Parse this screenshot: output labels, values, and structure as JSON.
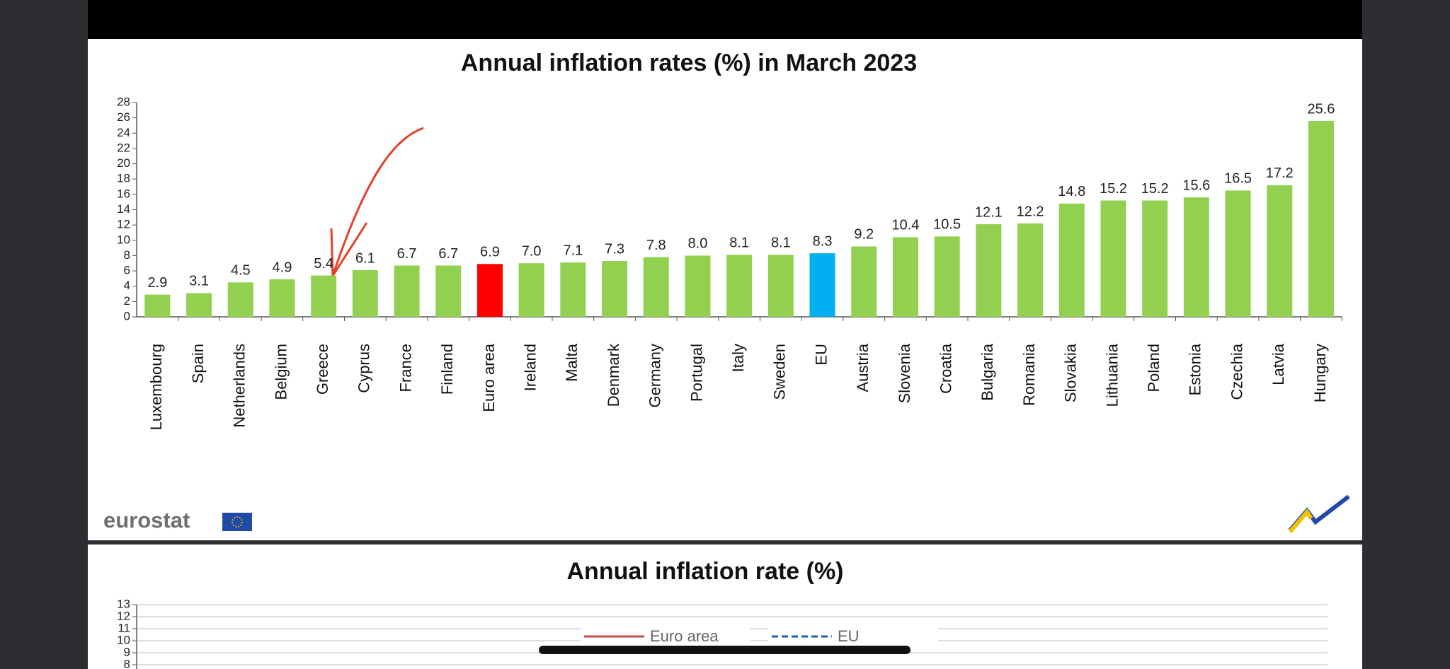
{
  "chart_data": [
    {
      "type": "bar",
      "title": "Annual inflation rates (%)  in March 2023",
      "categories": [
        "Luxembourg",
        "Spain",
        "Netherlands",
        "Belgium",
        "Greece",
        "Cyprus",
        "France",
        "Finland",
        "Euro area",
        "Ireland",
        "Malta",
        "Denmark",
        "Germany",
        "Portugal",
        "Italy",
        "Sweden",
        "EU",
        "Austria",
        "Slovenia",
        "Croatia",
        "Bulgaria",
        "Romania",
        "Slovakia",
        "Lithuania",
        "Poland",
        "Estonia",
        "Czechia",
        "Latvia",
        "Hungary"
      ],
      "values": [
        2.9,
        3.1,
        4.5,
        4.9,
        5.4,
        6.1,
        6.7,
        6.7,
        6.9,
        7.0,
        7.1,
        7.3,
        7.8,
        8.0,
        8.1,
        8.1,
        8.3,
        9.2,
        10.4,
        10.5,
        12.1,
        12.2,
        14.8,
        15.2,
        15.2,
        15.6,
        16.5,
        17.2,
        25.6
      ],
      "value_labels": [
        "2.9",
        "3.1",
        "4.5",
        "4.9",
        "5.4",
        "6.1",
        "6.7",
        "6.7",
        "6.9",
        "7.0",
        "7.1",
        "7.3",
        "7.8",
        "8.0",
        "8.1",
        "8.1",
        "8.3",
        "9.2",
        "10.4",
        "10.5",
        "12.1",
        "12.2",
        "14.8",
        "15.2",
        "15.2",
        "15.6",
        "16.5",
        "17.2",
        "25.6"
      ],
      "colors": [
        "#92d050",
        "#92d050",
        "#92d050",
        "#92d050",
        "#92d050",
        "#92d050",
        "#92d050",
        "#92d050",
        "#ff0000",
        "#92d050",
        "#92d050",
        "#92d050",
        "#92d050",
        "#92d050",
        "#92d050",
        "#92d050",
        "#00b0f0",
        "#92d050",
        "#92d050",
        "#92d050",
        "#92d050",
        "#92d050",
        "#92d050",
        "#92d050",
        "#92d050",
        "#92d050",
        "#92d050",
        "#92d050",
        "#92d050"
      ],
      "ylim": [
        0,
        28
      ],
      "yticks": [
        0,
        2,
        4,
        6,
        8,
        10,
        12,
        14,
        16,
        18,
        20,
        22,
        24,
        26,
        28
      ],
      "logo_text": "eurostat"
    },
    {
      "type": "line",
      "title": "Annual inflation rate (%)",
      "ylim": [
        8,
        13
      ],
      "yticks": [
        8,
        9,
        10,
        11,
        12,
        13
      ],
      "grid": true,
      "series": [
        {
          "name": "Euro area",
          "color": "#c0504d"
        },
        {
          "name": "EU",
          "color": "#1f5fa8"
        }
      ]
    }
  ]
}
